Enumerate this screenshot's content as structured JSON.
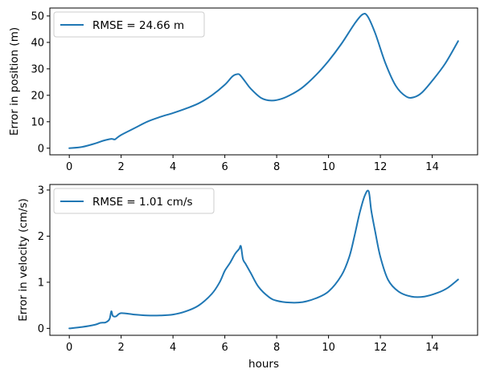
{
  "chart_data": [
    {
      "type": "line",
      "xlabel": "",
      "ylabel": "Error in position (m)",
      "xlim": [
        -0.75,
        15.75
      ],
      "ylim": [
        -2.5,
        53
      ],
      "xticks": [
        0,
        2,
        4,
        6,
        8,
        10,
        12,
        14
      ],
      "yticks": [
        0,
        10,
        20,
        30,
        40,
        50
      ],
      "legend_position": "upper-left",
      "grid": false,
      "series": [
        {
          "name": "RMSE = 24.66 m",
          "color": "#1f77b4",
          "x": [
            0,
            0.5,
            1.0,
            1.3,
            1.6,
            1.75,
            1.8,
            2.0,
            2.5,
            3.0,
            3.5,
            4.0,
            4.5,
            5.0,
            5.5,
            6.0,
            6.3,
            6.5,
            6.6,
            6.8,
            7.0,
            7.4,
            7.8,
            8.2,
            8.6,
            9.0,
            9.5,
            10.0,
            10.5,
            11.0,
            11.3,
            11.5,
            11.8,
            12.2,
            12.6,
            13.0,
            13.3,
            13.6,
            14.0,
            14.5,
            15.0
          ],
          "y": [
            0,
            0.5,
            1.8,
            2.8,
            3.5,
            3.3,
            3.6,
            5.0,
            7.5,
            10.0,
            11.8,
            13.3,
            15.0,
            17.0,
            20.0,
            24.0,
            27.2,
            28.0,
            27.5,
            25.0,
            22.5,
            19.0,
            18.0,
            18.7,
            20.5,
            23.0,
            27.5,
            33.0,
            39.5,
            47.0,
            50.5,
            50.0,
            43.5,
            32.0,
            23.5,
            19.5,
            19.3,
            21.0,
            25.5,
            32.0,
            40.5
          ]
        }
      ]
    },
    {
      "type": "line",
      "xlabel": "hours",
      "ylabel": "Error in velocity (cm/s)",
      "xlim": [
        -0.75,
        15.75
      ],
      "ylim": [
        -0.15,
        3.12
      ],
      "xticks": [
        0,
        2,
        4,
        6,
        8,
        10,
        12,
        14
      ],
      "yticks": [
        0,
        1,
        2,
        3
      ],
      "legend_position": "upper-left",
      "grid": false,
      "series": [
        {
          "name": "RMSE = 1.01 cm/s",
          "color": "#1f77b4",
          "x": [
            0,
            0.5,
            1.0,
            1.2,
            1.4,
            1.55,
            1.62,
            1.68,
            1.8,
            2.0,
            2.5,
            3.0,
            3.5,
            4.0,
            4.5,
            5.0,
            5.5,
            5.8,
            6.0,
            6.2,
            6.4,
            6.55,
            6.62,
            6.7,
            6.8,
            7.0,
            7.3,
            7.7,
            8.0,
            8.5,
            9.0,
            9.5,
            10.0,
            10.5,
            10.8,
            11.0,
            11.2,
            11.4,
            11.55,
            11.65,
            11.8,
            12.0,
            12.3,
            12.7,
            13.2,
            13.7,
            14.2,
            14.6,
            15.0
          ],
          "y": [
            0,
            0.03,
            0.08,
            0.12,
            0.13,
            0.2,
            0.37,
            0.27,
            0.26,
            0.33,
            0.3,
            0.28,
            0.28,
            0.3,
            0.37,
            0.5,
            0.75,
            1.0,
            1.25,
            1.42,
            1.62,
            1.72,
            1.78,
            1.5,
            1.4,
            1.2,
            0.9,
            0.68,
            0.6,
            0.56,
            0.57,
            0.65,
            0.8,
            1.15,
            1.55,
            2.0,
            2.5,
            2.88,
            2.97,
            2.55,
            2.1,
            1.55,
            1.05,
            0.8,
            0.69,
            0.69,
            0.77,
            0.88,
            1.06
          ]
        }
      ]
    }
  ]
}
